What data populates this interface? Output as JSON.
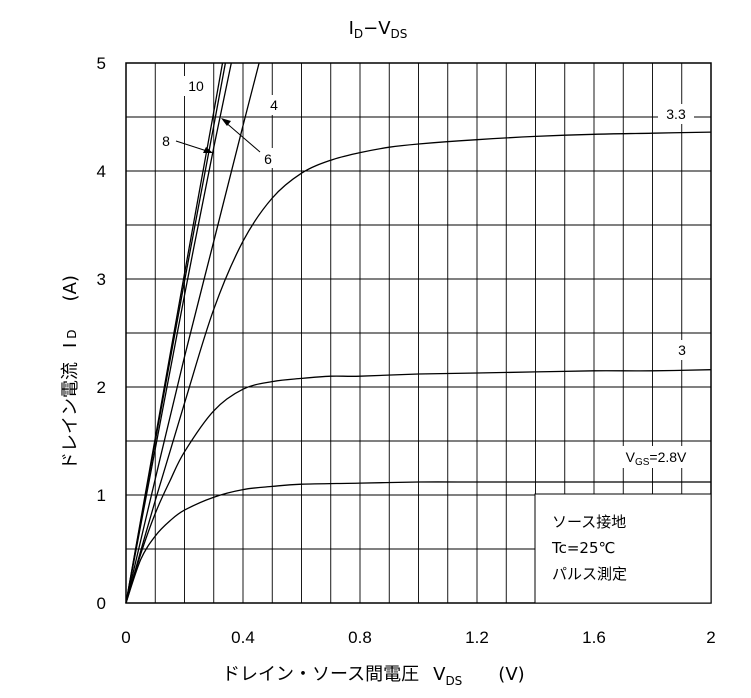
{
  "chart_data": {
    "type": "line",
    "title": {
      "main": "I",
      "sub1": "D",
      "dash": "−V",
      "sub2": "DS"
    },
    "xlabel": {
      "text": "ドレイン・ソース間電圧",
      "sym": "V",
      "sub": "DS",
      "unit": "(V)"
    },
    "ylabel": {
      "text": "ドレイン電流",
      "sym": "I",
      "sub": "D",
      "unit": "(A)"
    },
    "xlim": [
      0,
      2
    ],
    "ylim": [
      0,
      5
    ],
    "x_ticks": [
      "0",
      "0.4",
      "0.8",
      "1.2",
      "1.6",
      "2"
    ],
    "y_ticks": [
      "0",
      "1",
      "2",
      "3",
      "4",
      "5"
    ],
    "grid": true,
    "note": [
      "ソース接地",
      "Tc=25℃",
      "パルス測定"
    ],
    "series": [
      {
        "name": "V",
        "name_sub": "GS",
        "name_rest": "=2.8V",
        "x": [
          0,
          0.05,
          0.1,
          0.15,
          0.2,
          0.3,
          0.4,
          0.5,
          0.6,
          0.8,
          1.0,
          1.2,
          1.4,
          1.6,
          1.8,
          2.0
        ],
        "y": [
          0,
          0.4,
          0.62,
          0.76,
          0.86,
          0.98,
          1.05,
          1.08,
          1.1,
          1.11,
          1.12,
          1.12,
          1.12,
          1.12,
          1.12,
          1.12
        ]
      },
      {
        "name": "3",
        "x": [
          0,
          0.05,
          0.1,
          0.15,
          0.2,
          0.3,
          0.4,
          0.5,
          0.6,
          0.7,
          0.8,
          1.0,
          1.2,
          1.4,
          1.6,
          1.8,
          2.0
        ],
        "y": [
          0,
          0.45,
          0.83,
          1.13,
          1.4,
          1.78,
          1.98,
          2.05,
          2.08,
          2.1,
          2.1,
          2.12,
          2.13,
          2.14,
          2.15,
          2.15,
          2.16
        ]
      },
      {
        "name": "3.3",
        "x": [
          0,
          0.1,
          0.2,
          0.3,
          0.4,
          0.5,
          0.6,
          0.7,
          0.8,
          0.9,
          1.0,
          1.2,
          1.4,
          1.6,
          1.8,
          2.0
        ],
        "y": [
          0,
          0.95,
          1.85,
          2.72,
          3.35,
          3.75,
          3.98,
          4.1,
          4.17,
          4.22,
          4.25,
          4.29,
          4.32,
          4.34,
          4.35,
          4.36
        ]
      },
      {
        "name": "4",
        "x": [
          0,
          0.1,
          0.2,
          0.3,
          0.4,
          0.455
        ],
        "y": [
          0,
          1.15,
          2.28,
          3.35,
          4.42,
          5.0
        ]
      },
      {
        "name": "6",
        "x": [
          0,
          0.1,
          0.2,
          0.3,
          0.36
        ],
        "y": [
          0,
          1.43,
          2.85,
          4.22,
          5.0
        ]
      },
      {
        "name": "8",
        "x": [
          0,
          0.1,
          0.2,
          0.3,
          0.34
        ],
        "y": [
          0,
          1.5,
          2.98,
          4.42,
          5.0
        ]
      },
      {
        "name": "10",
        "x": [
          0,
          0.1,
          0.2,
          0.3,
          0.33
        ],
        "y": [
          0,
          1.53,
          3.05,
          4.55,
          5.0
        ]
      }
    ]
  }
}
